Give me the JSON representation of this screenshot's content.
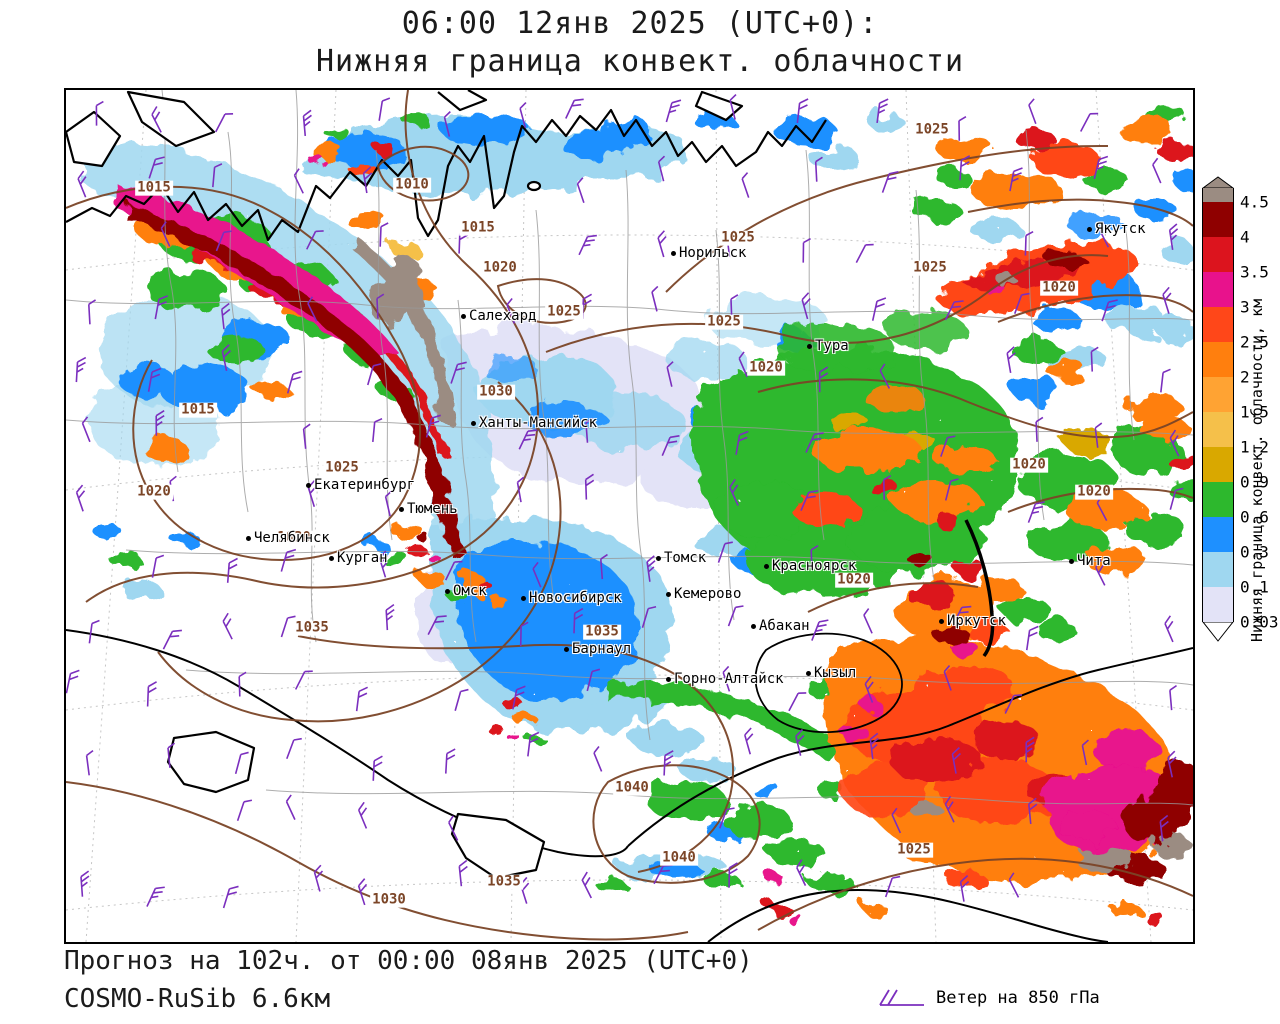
{
  "title": {
    "line1": "06:00 12янв 2025 (UTC+0):",
    "line2": "Нижняя граница конвект. облачности"
  },
  "footer": {
    "forecast_line": "Прогноз на 102ч. от 00:00 08янв 2025 (UTC+0)",
    "model_line": "COSMO-RuSib 6.6км",
    "wind_legend_label": "Ветер на 850 гПа"
  },
  "colorbar": {
    "axis_label": "Нижняя граница конвект. облачности, км",
    "ticks": [
      "4.5",
      "4",
      "3.5",
      "3",
      "2.5",
      "2",
      "1.5",
      "1.2",
      "0.9",
      "0.6",
      "0.3",
      "0.1",
      "0.03"
    ],
    "segment_colors_top_to_bottom": [
      "#9b8c82",
      "#8f0000",
      "#dc141e",
      "#e8128c",
      "#ff4719",
      "#ff7f0e",
      "#ffa333",
      "#f5c04a",
      "#d9a800",
      "#2db82d",
      "#1e90ff",
      "#9fd7f0",
      "#e3e3f7"
    ],
    "below_min_color": "#ffffff"
  },
  "map": {
    "cities": [
      "Норильск",
      "Салехард",
      "Тура",
      "Якутск",
      "Ханты-Мансийск",
      "Екатеринбург",
      "Тюмень",
      "Челябинск",
      "Курган",
      "Омск",
      "Новосибирск",
      "Томск",
      "Кемерово",
      "Красноярск",
      "Абакан",
      "Барнаул",
      "Горно-Алтайск",
      "Кызыл",
      "Иркутск",
      "Чита"
    ],
    "isobar_labels": [
      "1015",
      "1010",
      "1015",
      "1020",
      "1025",
      "1025",
      "1025",
      "1025",
      "1025",
      "1020",
      "1030",
      "1015",
      "1025",
      "1020",
      "1030",
      "1020",
      "1020",
      "1020",
      "1020",
      "1035",
      "1035",
      "1040",
      "1040",
      "1030",
      "1035",
      "1025"
    ],
    "colors": {
      "isobar_line": "#7b4527",
      "wind_barb": "#7b2fbe",
      "coastline": "#000000",
      "admin_border": "#999999"
    }
  }
}
